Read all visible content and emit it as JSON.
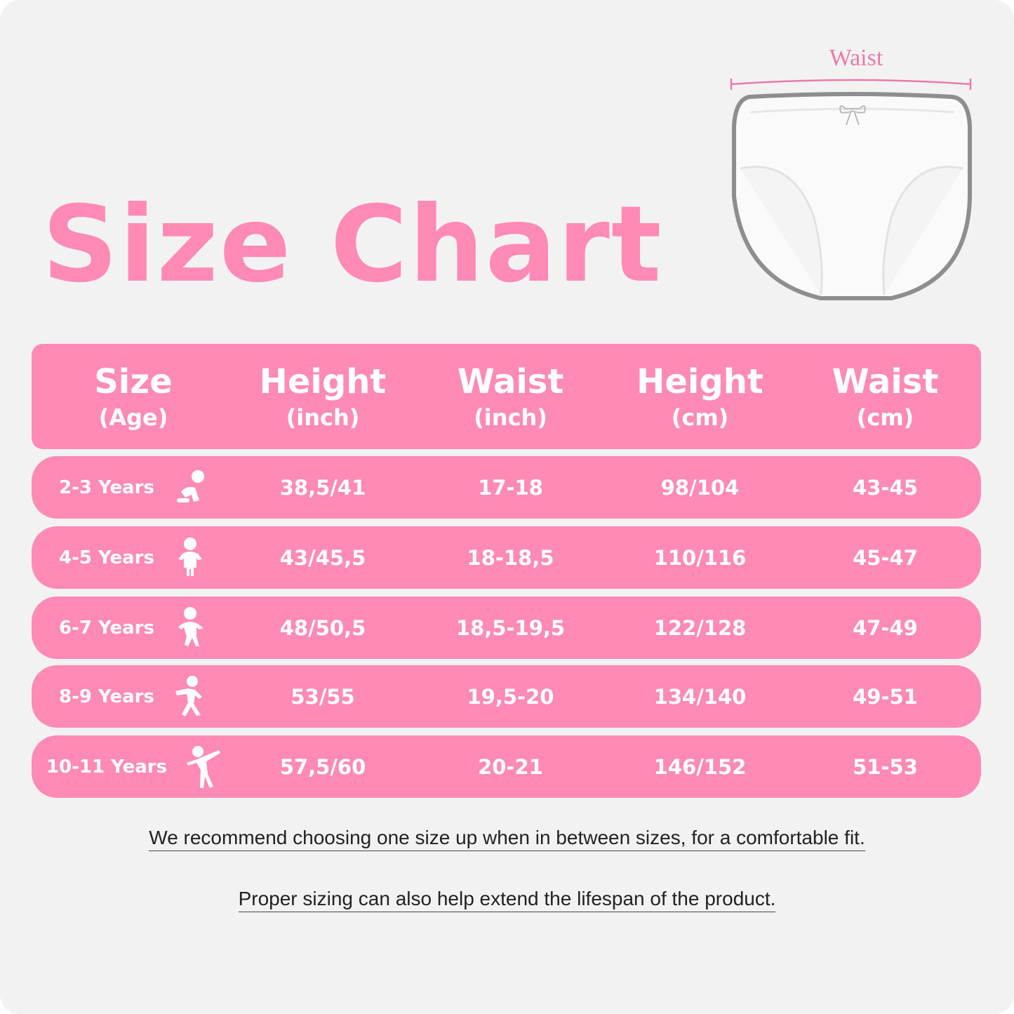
{
  "title": "Size Chart",
  "illustration": {
    "label": "Waist",
    "accent": "#ea7aa8"
  },
  "colors": {
    "pink": "#ff8ab5",
    "background": "#f2f2f2"
  },
  "header": [
    {
      "main": "Size",
      "sub": "(Age)"
    },
    {
      "main": "Height",
      "sub": "(inch)"
    },
    {
      "main": "Waist",
      "sub": "(inch)"
    },
    {
      "main": "Height",
      "sub": "(cm)"
    },
    {
      "main": "Waist",
      "sub": "(cm)"
    }
  ],
  "rows": [
    {
      "size": "2-3 Years",
      "icon": "crawling-baby-icon",
      "height_in": "38,5/41",
      "waist_in": "17-18",
      "height_cm": "98/104",
      "waist_cm": "43-45"
    },
    {
      "size": "4-5 Years",
      "icon": "standing-toddler-icon",
      "height_in": "43/45,5",
      "waist_in": "18-18,5",
      "height_cm": "110/116",
      "waist_cm": "45-47"
    },
    {
      "size": "6-7 Years",
      "icon": "walking-child-icon",
      "height_in": "48/50,5",
      "waist_in": "18,5-19,5",
      "height_cm": "122/128",
      "waist_cm": "47-49"
    },
    {
      "size": "8-9 Years",
      "icon": "running-child-icon",
      "height_in": "53/55",
      "waist_in": "19,5-20",
      "height_cm": "134/140",
      "waist_cm": "49-51"
    },
    {
      "size": "10-11 Years",
      "icon": "dancing-child-icon",
      "height_in": "57,5/60",
      "waist_in": "20-21",
      "height_cm": "146/152",
      "waist_cm": "51-53"
    }
  ],
  "notes": [
    "We recommend choosing one size up when in between sizes, for a comfortable fit.",
    "Proper sizing can also help extend the lifespan of the product."
  ]
}
